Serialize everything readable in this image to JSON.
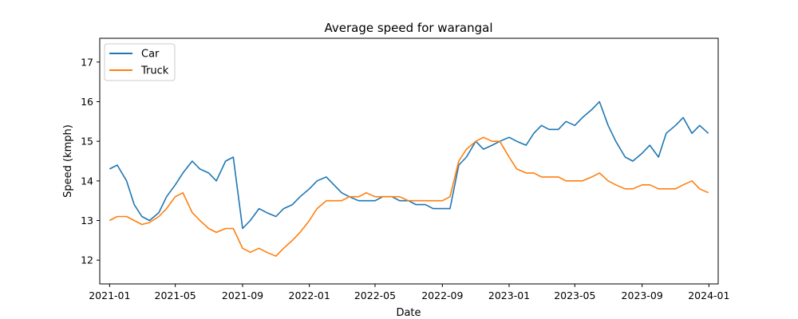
{
  "chart_data": {
    "type": "line",
    "title": "Average speed for warangal",
    "xlabel": "Date",
    "ylabel": "Speed (kmph)",
    "x_range": [
      "2020-12-14",
      "2024-01-18"
    ],
    "ylim": [
      11.4,
      17.6
    ],
    "x_ticks": [
      "2021-01",
      "2021-05",
      "2021-09",
      "2022-01",
      "2022-05",
      "2022-09",
      "2023-01",
      "2023-05",
      "2023-09",
      "2024-01"
    ],
    "y_ticks": [
      12,
      13,
      14,
      15,
      16,
      17
    ],
    "grid": false,
    "legend_position": "top-left",
    "series": [
      {
        "name": "Car",
        "color": "#1f77b4",
        "points": [
          [
            "2021-01-01",
            14.3
          ],
          [
            "2021-01-15",
            14.4
          ],
          [
            "2021-02-01",
            14.0
          ],
          [
            "2021-02-15",
            13.4
          ],
          [
            "2021-03-01",
            13.1
          ],
          [
            "2021-03-15",
            13.0
          ],
          [
            "2021-04-01",
            13.2
          ],
          [
            "2021-04-15",
            13.6
          ],
          [
            "2021-05-01",
            13.9
          ],
          [
            "2021-05-15",
            14.2
          ],
          [
            "2021-06-01",
            14.5
          ],
          [
            "2021-06-15",
            14.3
          ],
          [
            "2021-07-01",
            14.2
          ],
          [
            "2021-07-15",
            14.0
          ],
          [
            "2021-08-01",
            14.5
          ],
          [
            "2021-08-15",
            14.6
          ],
          [
            "2021-09-01",
            12.8
          ],
          [
            "2021-09-15",
            13.0
          ],
          [
            "2021-10-01",
            13.3
          ],
          [
            "2021-10-15",
            13.2
          ],
          [
            "2021-11-01",
            13.1
          ],
          [
            "2021-11-15",
            13.3
          ],
          [
            "2021-12-01",
            13.4
          ],
          [
            "2021-12-15",
            13.6
          ],
          [
            "2022-01-01",
            13.8
          ],
          [
            "2022-01-15",
            14.0
          ],
          [
            "2022-02-01",
            14.1
          ],
          [
            "2022-02-15",
            13.9
          ],
          [
            "2022-03-01",
            13.7
          ],
          [
            "2022-03-15",
            13.6
          ],
          [
            "2022-04-01",
            13.5
          ],
          [
            "2022-04-15",
            13.5
          ],
          [
            "2022-05-01",
            13.5
          ],
          [
            "2022-05-15",
            13.6
          ],
          [
            "2022-06-01",
            13.6
          ],
          [
            "2022-06-15",
            13.5
          ],
          [
            "2022-07-01",
            13.5
          ],
          [
            "2022-07-15",
            13.4
          ],
          [
            "2022-08-01",
            13.4
          ],
          [
            "2022-08-15",
            13.3
          ],
          [
            "2022-09-01",
            13.3
          ],
          [
            "2022-09-15",
            13.3
          ],
          [
            "2022-10-01",
            14.4
          ],
          [
            "2022-10-15",
            14.6
          ],
          [
            "2022-11-01",
            15.0
          ],
          [
            "2022-11-15",
            14.8
          ],
          [
            "2022-12-01",
            14.9
          ],
          [
            "2022-12-15",
            15.0
          ],
          [
            "2023-01-01",
            15.1
          ],
          [
            "2023-01-15",
            15.0
          ],
          [
            "2023-02-01",
            14.9
          ],
          [
            "2023-02-15",
            15.2
          ],
          [
            "2023-03-01",
            15.4
          ],
          [
            "2023-03-15",
            15.3
          ],
          [
            "2023-04-01",
            15.3
          ],
          [
            "2023-04-15",
            15.5
          ],
          [
            "2023-05-01",
            15.4
          ],
          [
            "2023-05-15",
            15.6
          ],
          [
            "2023-06-01",
            15.8
          ],
          [
            "2023-06-15",
            16.0
          ],
          [
            "2023-07-01",
            15.4
          ],
          [
            "2023-07-15",
            15.0
          ],
          [
            "2023-08-01",
            14.6
          ],
          [
            "2023-08-15",
            14.5
          ],
          [
            "2023-09-01",
            14.7
          ],
          [
            "2023-09-15",
            14.9
          ],
          [
            "2023-10-01",
            14.6
          ],
          [
            "2023-10-15",
            15.2
          ],
          [
            "2023-11-01",
            15.4
          ],
          [
            "2023-11-15",
            15.6
          ],
          [
            "2023-12-01",
            15.2
          ],
          [
            "2023-12-15",
            15.4
          ],
          [
            "2023-12-31",
            15.2
          ]
        ]
      },
      {
        "name": "Truck",
        "color": "#ff7f0e",
        "points": [
          [
            "2021-01-01",
            13.0
          ],
          [
            "2021-01-15",
            13.1
          ],
          [
            "2021-02-01",
            13.1
          ],
          [
            "2021-02-15",
            13.0
          ],
          [
            "2021-03-01",
            12.9
          ],
          [
            "2021-03-15",
            12.95
          ],
          [
            "2021-04-01",
            13.1
          ],
          [
            "2021-04-15",
            13.3
          ],
          [
            "2021-05-01",
            13.6
          ],
          [
            "2021-05-15",
            13.7
          ],
          [
            "2021-06-01",
            13.2
          ],
          [
            "2021-06-15",
            13.0
          ],
          [
            "2021-07-01",
            12.8
          ],
          [
            "2021-07-15",
            12.7
          ],
          [
            "2021-08-01",
            12.8
          ],
          [
            "2021-08-15",
            12.8
          ],
          [
            "2021-09-01",
            12.3
          ],
          [
            "2021-09-15",
            12.2
          ],
          [
            "2021-10-01",
            12.3
          ],
          [
            "2021-10-15",
            12.2
          ],
          [
            "2021-11-01",
            12.1
          ],
          [
            "2021-11-15",
            12.3
          ],
          [
            "2021-12-01",
            12.5
          ],
          [
            "2021-12-15",
            12.7
          ],
          [
            "2022-01-01",
            13.0
          ],
          [
            "2022-01-15",
            13.3
          ],
          [
            "2022-02-01",
            13.5
          ],
          [
            "2022-02-15",
            13.5
          ],
          [
            "2022-03-01",
            13.5
          ],
          [
            "2022-03-15",
            13.6
          ],
          [
            "2022-04-01",
            13.6
          ],
          [
            "2022-04-15",
            13.7
          ],
          [
            "2022-05-01",
            13.6
          ],
          [
            "2022-05-15",
            13.6
          ],
          [
            "2022-06-01",
            13.6
          ],
          [
            "2022-06-15",
            13.6
          ],
          [
            "2022-07-01",
            13.5
          ],
          [
            "2022-07-15",
            13.5
          ],
          [
            "2022-08-01",
            13.5
          ],
          [
            "2022-08-15",
            13.5
          ],
          [
            "2022-09-01",
            13.5
          ],
          [
            "2022-09-15",
            13.6
          ],
          [
            "2022-10-01",
            14.5
          ],
          [
            "2022-10-15",
            14.8
          ],
          [
            "2022-11-01",
            15.0
          ],
          [
            "2022-11-15",
            15.1
          ],
          [
            "2022-12-01",
            15.0
          ],
          [
            "2022-12-15",
            15.0
          ],
          [
            "2023-01-01",
            14.6
          ],
          [
            "2023-01-15",
            14.3
          ],
          [
            "2023-02-01",
            14.2
          ],
          [
            "2023-02-15",
            14.2
          ],
          [
            "2023-03-01",
            14.1
          ],
          [
            "2023-03-15",
            14.1
          ],
          [
            "2023-04-01",
            14.1
          ],
          [
            "2023-04-15",
            14.0
          ],
          [
            "2023-05-01",
            14.0
          ],
          [
            "2023-05-15",
            14.0
          ],
          [
            "2023-06-01",
            14.1
          ],
          [
            "2023-06-15",
            14.2
          ],
          [
            "2023-07-01",
            14.0
          ],
          [
            "2023-07-15",
            13.9
          ],
          [
            "2023-08-01",
            13.8
          ],
          [
            "2023-08-15",
            13.8
          ],
          [
            "2023-09-01",
            13.9
          ],
          [
            "2023-09-15",
            13.9
          ],
          [
            "2023-10-01",
            13.8
          ],
          [
            "2023-10-15",
            13.8
          ],
          [
            "2023-11-01",
            13.8
          ],
          [
            "2023-11-15",
            13.9
          ],
          [
            "2023-12-01",
            14.0
          ],
          [
            "2023-12-15",
            13.8
          ],
          [
            "2023-12-31",
            13.7
          ]
        ]
      }
    ]
  }
}
